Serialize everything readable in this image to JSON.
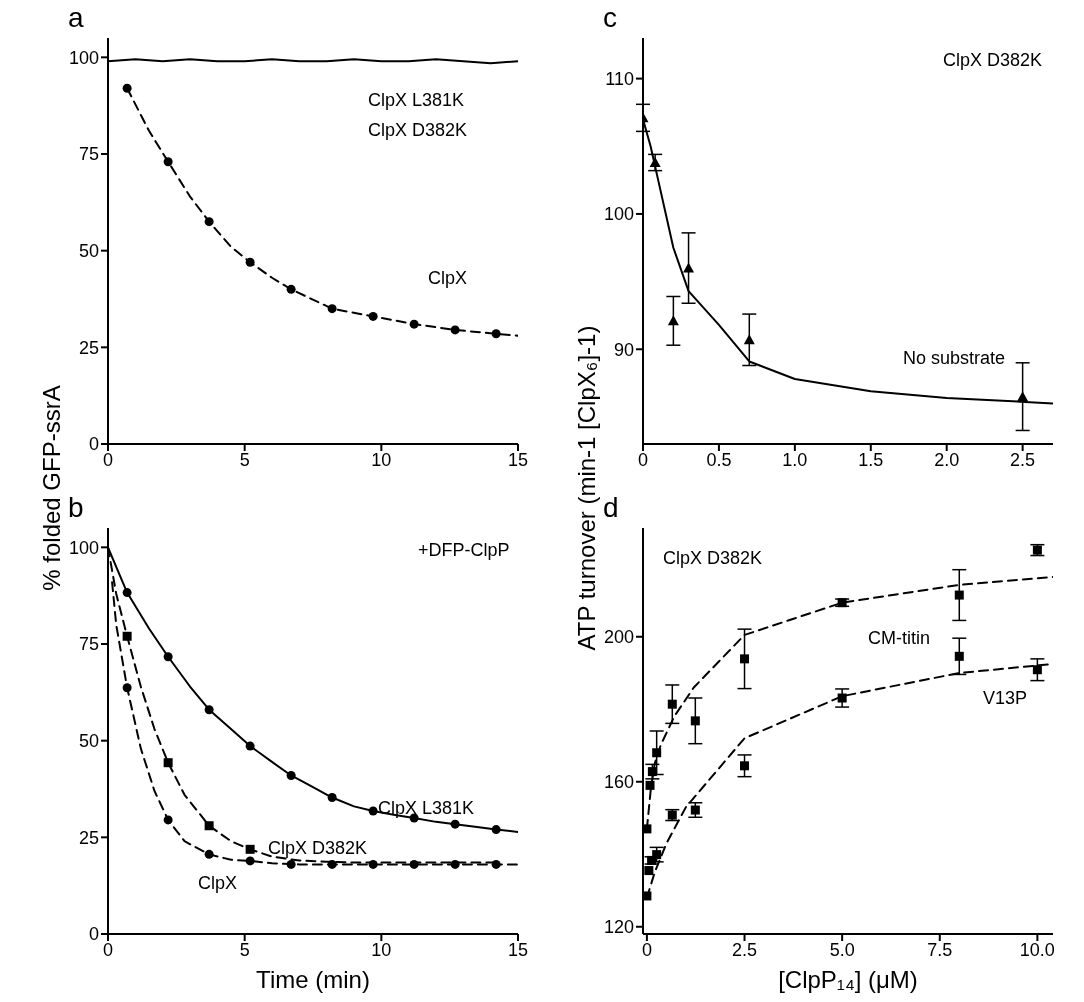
{
  "chart_data": [
    {
      "type": "scatter",
      "title": "a",
      "ylabel": "% folded GFP-ssrA",
      "xlim": [
        0,
        15
      ],
      "xticks": [
        0,
        5,
        10,
        15
      ],
      "ylim": [
        0,
        105
      ],
      "yticks": [
        0,
        25,
        50,
        75,
        100
      ],
      "series": [
        {
          "type": "line",
          "color": "#000000",
          "line_style": "solid",
          "marker": "none",
          "x": [
            0,
            1,
            2,
            3,
            4,
            5,
            6,
            7,
            8,
            9,
            10,
            11,
            12,
            13,
            14,
            15
          ],
          "values": [
            99,
            99.5,
            99,
            99.5,
            99,
            99,
            99.5,
            99,
            99,
            99.5,
            99,
            99,
            99.5,
            99,
            98.5,
            99
          ]
        },
        {
          "type": "line",
          "color": "#000000",
          "line_style": "dashed",
          "marker": "none",
          "x": [
            0.7,
            1.5,
            2.2,
            3,
            3.7,
            4.5,
            5.2,
            6,
            6.7,
            8.2,
            9.7,
            11.2,
            12.7,
            14.2,
            15
          ],
          "values": [
            92,
            81,
            73,
            64,
            57.5,
            51,
            47,
            43,
            40,
            35,
            33,
            31,
            29.5,
            28.5,
            28
          ]
        },
        {
          "color": "#000000",
          "marker": "circle",
          "x": [
            0.7,
            2.2,
            3.7,
            5.2,
            6.7,
            8.2,
            9.7,
            11.2,
            12.7,
            14.2
          ],
          "values": [
            92,
            73,
            57.5,
            47,
            40,
            35,
            33,
            31,
            29.5,
            28.5
          ]
        }
      ],
      "annotations": [
        "ClpX L381K",
        "ClpX D382K",
        "ClpX"
      ]
    },
    {
      "type": "scatter",
      "title": "b",
      "xlabel": "Time (min)",
      "xlim": [
        0,
        15
      ],
      "xticks": [
        0,
        5,
        10,
        15
      ],
      "ylim": [
        0,
        105
      ],
      "yticks": [
        0,
        25,
        50,
        75,
        100
      ],
      "series": [
        {
          "type": "line",
          "color": "#000000",
          "line_style": "solid",
          "marker": "none",
          "x": [
            0,
            0.7,
            1.5,
            2.2,
            3,
            3.7,
            4.5,
            5.2,
            6,
            6.7,
            7.5,
            8.2,
            9,
            9.7,
            10.5,
            11.2,
            12,
            12.7,
            13.5,
            14.2,
            15
          ],
          "values": [
            100,
            88.3,
            79,
            71.7,
            64,
            58,
            53,
            48.6,
            44.5,
            41,
            38,
            35.3,
            33,
            31.8,
            30.8,
            30,
            29,
            28.4,
            27.7,
            27,
            26.4
          ]
        },
        {
          "color": "#000000",
          "marker": "circle",
          "x": [
            0.7,
            2.2,
            3.7,
            5.2,
            6.7,
            8.2,
            9.7,
            11.2,
            12.7,
            14.2
          ],
          "values": [
            88.3,
            71.7,
            58,
            48.6,
            41,
            35.3,
            31.8,
            30,
            28.4,
            27
          ]
        },
        {
          "type": "line",
          "color": "#000000",
          "line_style": "dashed",
          "marker": "none",
          "x": [
            0,
            0.3,
            0.7,
            1.2,
            1.7,
            2.2,
            2.8,
            3.7,
            4.5,
            5.2,
            6,
            7,
            8,
            9,
            10,
            11,
            12,
            13,
            14.2
          ],
          "values": [
            100,
            88,
            77,
            64,
            53,
            44.3,
            36,
            28,
            24,
            21.9,
            20,
            19,
            18.7,
            18.5,
            18.5,
            18.5,
            18.5,
            18.5,
            18.5
          ]
        },
        {
          "color": "#000000",
          "marker": "square",
          "x": [
            0.7,
            2.2,
            3.7,
            5.2
          ],
          "values": [
            77,
            44.3,
            28,
            21.9
          ]
        },
        {
          "type": "line",
          "color": "#000000",
          "line_style": "dashed",
          "marker": "none",
          "x": [
            0.15,
            0.3,
            0.7,
            1.2,
            1.7,
            2.2,
            2.8,
            3.7,
            4.5,
            5.2,
            6,
            7,
            8,
            9,
            10,
            11,
            12,
            13,
            14,
            15
          ],
          "values": [
            91,
            80,
            63.7,
            48,
            37,
            29.5,
            24,
            20.6,
            19.2,
            18.9,
            18.3,
            18,
            18,
            18,
            18,
            18,
            18,
            18,
            18,
            18
          ]
        },
        {
          "color": "#000000",
          "marker": "circle",
          "x": [
            0.7,
            2.2,
            3.7,
            5.2,
            6.7,
            8.2,
            9.7,
            11.2,
            12.7,
            14.2
          ],
          "values": [
            63.7,
            29.5,
            20.6,
            18.9,
            18,
            18,
            18,
            18,
            18,
            18
          ]
        }
      ],
      "annotations": [
        "+DFP-ClpP",
        "ClpX L381K",
        "ClpX D382K",
        "ClpX"
      ]
    },
    {
      "type": "scatter",
      "title": "c",
      "ylabel": "ATP turnover (min-1 [ClpX₆]-1)",
      "xlim": [
        0,
        2.7
      ],
      "xticks": [
        0,
        0.5,
        {
          "value": 1,
          "label": "1.0"
        },
        1.5,
        {
          "value": 2,
          "label": "2.0"
        },
        2.5
      ],
      "ylim": [
        83,
        113
      ],
      "yticks": [
        90,
        100,
        110
      ],
      "series": [
        {
          "type": "line",
          "color": "#000000",
          "line_style": "solid",
          "marker": "none",
          "x": [
            0,
            0.05,
            0.1,
            0.2,
            0.3,
            0.5,
            0.7,
            1,
            1.5,
            2,
            2.7
          ],
          "values": [
            107,
            105,
            102.5,
            97.5,
            94.3,
            91.8,
            89.1,
            87.8,
            86.9,
            86.4,
            86
          ]
        },
        {
          "color": "#000000",
          "marker": "triangle",
          "x": [
            0,
            0.08,
            0.2,
            0.3,
            0.7,
            2.5
          ],
          "values": [
            107.1,
            103.8,
            92.1,
            96,
            90.7,
            86.5
          ],
          "errors": [
            1,
            0.6,
            1.8,
            2.6,
            1.9,
            2.5
          ]
        }
      ],
      "annotations": [
        "ClpX D382K",
        "No substrate"
      ]
    },
    {
      "type": "scatter",
      "title": "d",
      "xlabel": "[ClpP₁₄] (μM)",
      "xlim": [
        -0.1,
        10.4
      ],
      "xticks": [
        0,
        2.5,
        {
          "value": 5,
          "label": "5.0"
        },
        7.5,
        {
          "value": 10,
          "label": "10.0"
        }
      ],
      "ylim": [
        118,
        230
      ],
      "yticks": [
        120,
        160,
        200
      ],
      "series": [
        {
          "type": "line",
          "color": "#000000",
          "line_style": "dashed",
          "marker": "none",
          "x": [
            0,
            0.1,
            0.2,
            0.35,
            0.7,
            1.2,
            2.5,
            5,
            8,
            10.4
          ],
          "values": [
            147,
            158,
            165,
            170,
            178,
            186,
            200.5,
            209.4,
            214.3,
            216.5
          ]
        },
        {
          "color": "#000000",
          "marker": "square",
          "x": [
            0,
            0.08,
            0.14,
            0.25,
            0.65,
            1.24,
            2.5,
            5,
            8,
            10
          ],
          "values": [
            147,
            159,
            162.8,
            168,
            181.4,
            176.8,
            193.9,
            209.4,
            211.5,
            223.9
          ],
          "errors": [
            null,
            null,
            2,
            6,
            5.3,
            6.3,
            8.2,
            1,
            7,
            1.5
          ]
        },
        {
          "type": "line",
          "color": "#000000",
          "line_style": "dashed",
          "marker": "none",
          "x": [
            0,
            0.2,
            0.5,
            1,
            2.5,
            5,
            8,
            10.4
          ],
          "values": [
            128,
            135,
            143,
            153,
            172,
            183.6,
            190,
            192.5
          ]
        },
        {
          "color": "#000000",
          "marker": "square",
          "x": [
            0,
            0.05,
            0.12,
            0.25,
            0.65,
            1.24,
            2.5,
            5,
            8,
            10
          ],
          "values": [
            128.5,
            135.5,
            138.3,
            139.9,
            150.8,
            152.2,
            164.4,
            183.1,
            194.6,
            190.9
          ],
          "errors": [
            null,
            null,
            1,
            2,
            1.5,
            2,
            3,
            2.5,
            5,
            3
          ]
        }
      ],
      "annotations": [
        "ClpX D382K",
        "CM-titin",
        "V13P"
      ]
    }
  ]
}
